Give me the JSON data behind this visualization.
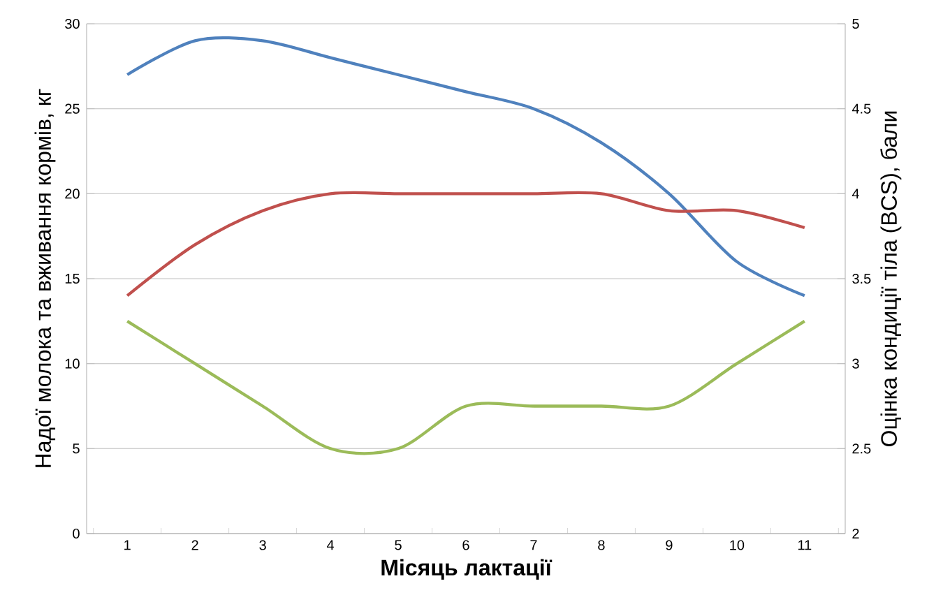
{
  "chart_data": {
    "type": "line",
    "xlabel": "Місяць лактації",
    "ylabel": "Надої молока та вживання кормів, кг",
    "y2label": "Оцінка кондиції тіла (BCS), бали",
    "categories": [
      "1",
      "2",
      "3",
      "4",
      "5",
      "6",
      "7",
      "8",
      "9",
      "10",
      "11"
    ],
    "series": [
      {
        "color": "#4f81bd",
        "values": [
          27,
          29,
          29,
          28,
          27,
          26,
          25,
          23,
          20,
          16,
          14
        ]
      },
      {
        "color": "#c0504d",
        "values": [
          14,
          17,
          19,
          20,
          20,
          20,
          20,
          20,
          19,
          19,
          18
        ]
      },
      {
        "color": "#9bbb59",
        "axis": "y2",
        "values": [
          3.25,
          3,
          2.75,
          2.5,
          2.5,
          2.75,
          2.75,
          2.75,
          2.75,
          3,
          3.25
        ]
      }
    ],
    "ylim": [
      0,
      30
    ],
    "yticks": [
      0,
      5,
      10,
      15,
      20,
      25,
      30
    ],
    "y2lim": [
      2,
      5
    ],
    "y2ticks": [
      2,
      2.5,
      3,
      3.5,
      4,
      4.5,
      5
    ],
    "grid": "y",
    "marker": "none",
    "line_style": "solid"
  }
}
